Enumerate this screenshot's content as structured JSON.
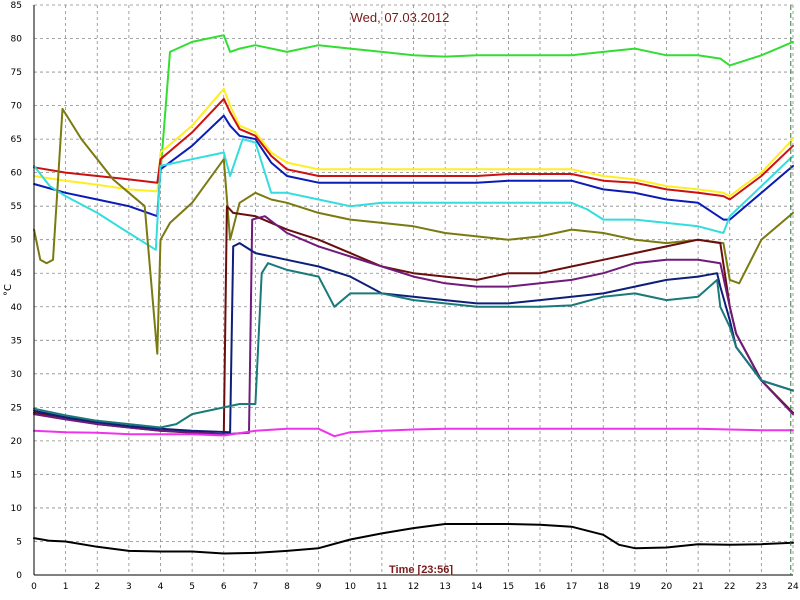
{
  "chart_data": {
    "type": "line",
    "title": "Wed, 07.03.2012",
    "xlabel": "Time [23:56]",
    "ylabel": "°C",
    "xlim": [
      0,
      24
    ],
    "ylim": [
      0,
      85
    ],
    "xticks": [
      0,
      1,
      2,
      3,
      4,
      5,
      6,
      7,
      8,
      9,
      10,
      11,
      12,
      13,
      14,
      15,
      16,
      17,
      18,
      19,
      20,
      21,
      22,
      23,
      24
    ],
    "yticks": [
      0,
      5,
      10,
      15,
      20,
      25,
      30,
      35,
      40,
      45,
      50,
      55,
      60,
      65,
      70,
      75,
      80,
      85
    ],
    "grid": true,
    "colors": {
      "axis_text": "#7a1a1a",
      "grid": "#8a8a8a",
      "current_time_marker": "#2e7d32"
    },
    "current_time": 23.93,
    "series": [
      {
        "color": "#33dd33",
        "x": [
          0,
          0.8,
          3.85,
          4.0,
          4.3,
          5,
          6,
          6.2,
          6.5,
          7,
          8,
          9,
          10,
          11,
          12,
          13,
          14,
          15,
          16,
          17,
          18,
          19,
          20,
          21,
          21.7,
          22,
          23,
          24
        ],
        "y": [
          null,
          null,
          null,
          60,
          78,
          79.5,
          80.5,
          78,
          78.5,
          79,
          78,
          79,
          78.5,
          78,
          77.5,
          77.3,
          77.5,
          77.5,
          77.5,
          77.5,
          78,
          78.5,
          77.5,
          77.5,
          77,
          76,
          77.5,
          79.5
        ]
      },
      {
        "color": "#ffee22",
        "x": [
          0,
          1,
          2,
          3,
          3.9,
          4.0,
          5,
          6,
          6.2,
          6.5,
          7,
          7.5,
          8,
          9,
          10,
          11,
          12,
          13,
          14,
          15,
          16,
          17,
          18,
          19,
          20,
          21,
          21.8,
          22,
          23,
          24
        ],
        "y": [
          59.5,
          58.8,
          58.2,
          57.5,
          57.2,
          63,
          67,
          72.5,
          70,
          67,
          66,
          63,
          61.5,
          60.5,
          60.5,
          60.5,
          60.5,
          60.5,
          60.5,
          60.5,
          60.5,
          60.5,
          59.5,
          59,
          58,
          57.5,
          57,
          56.5,
          60,
          65
        ]
      },
      {
        "color": "#cc1111",
        "x": [
          0,
          1,
          2,
          3,
          3.9,
          4.0,
          5,
          6,
          6.2,
          6.5,
          7,
          7.5,
          8,
          9,
          10,
          11,
          12,
          13,
          14,
          15,
          16,
          17,
          18,
          19,
          20,
          21,
          21.8,
          22,
          23,
          24
        ],
        "y": [
          60.8,
          60,
          59.5,
          59,
          58.5,
          62,
          66,
          71,
          69,
          66.5,
          65.5,
          62.5,
          60.5,
          59.5,
          59.5,
          59.5,
          59.5,
          59.5,
          59.5,
          59.8,
          59.8,
          59.8,
          58.8,
          58.5,
          57.5,
          57,
          56.5,
          56,
          59.5,
          64
        ]
      },
      {
        "color": "#0b1bb5",
        "x": [
          0,
          1,
          2,
          3,
          3.9,
          4.0,
          5,
          6,
          6.2,
          6.5,
          7,
          7.5,
          8,
          9,
          10,
          11,
          12,
          13,
          14,
          15,
          16,
          17,
          18,
          19,
          20,
          21,
          21.8,
          22,
          23,
          24
        ],
        "y": [
          58.3,
          57,
          56,
          55,
          53.5,
          60.5,
          64,
          68.5,
          67,
          65.5,
          65,
          61.5,
          59.5,
          58.5,
          58.5,
          58.5,
          58.5,
          58.5,
          58.5,
          58.8,
          58.8,
          58.8,
          57.5,
          57,
          56,
          55.5,
          53,
          53,
          57,
          61
        ]
      },
      {
        "color": "#33dddd",
        "x": [
          0,
          0.5,
          1,
          2,
          3,
          3.85,
          4.0,
          5,
          6,
          6.2,
          6.6,
          7,
          7.5,
          8,
          9,
          10,
          11,
          12,
          13,
          14,
          15,
          16,
          17,
          17.5,
          18,
          19,
          20,
          21,
          21.8,
          22,
          23,
          24
        ],
        "y": [
          61,
          58,
          56.5,
          54,
          51,
          48.5,
          61,
          62,
          63,
          59.5,
          65,
          64.5,
          57,
          57,
          56,
          55,
          55.5,
          55.5,
          55.5,
          55.5,
          55.5,
          55.5,
          55.5,
          54.5,
          53,
          53,
          52.5,
          52,
          51,
          53.5,
          58,
          62.5
        ]
      },
      {
        "color": "#7a7a10",
        "x": [
          0,
          0.2,
          0.4,
          0.6,
          0.9,
          1.5,
          2,
          2.5,
          3,
          3.5,
          3.9,
          4.0,
          4.3,
          5,
          6,
          6.2,
          6.5,
          7,
          7.5,
          8,
          9,
          10,
          11,
          12,
          13,
          14,
          15,
          16,
          17,
          18,
          19,
          20,
          21,
          21.8,
          22,
          22.3,
          23,
          24
        ],
        "y": [
          51.5,
          47,
          46.5,
          47,
          69.5,
          65,
          62,
          59,
          57,
          55,
          33,
          50,
          52.5,
          55.5,
          62,
          50,
          55.5,
          57,
          56,
          55.5,
          54,
          53,
          52.5,
          52,
          51,
          50.5,
          50,
          50.5,
          51.5,
          51,
          50,
          49.5,
          50,
          49.5,
          44,
          43.5,
          50,
          54
        ]
      },
      {
        "color": "#6a0d0d",
        "x": [
          0,
          1,
          2,
          3,
          4,
          5,
          6.0,
          6.1,
          6.3,
          7,
          8,
          9,
          10,
          11,
          12,
          13,
          14,
          15,
          16,
          17,
          18,
          19,
          20,
          21,
          21.7,
          22,
          22.2,
          23,
          24
        ],
        "y": [
          24.2,
          23.5,
          22.5,
          22,
          21.5,
          21.2,
          21,
          55,
          54,
          53.5,
          51.5,
          50,
          48,
          46,
          45,
          44.5,
          44,
          45,
          45,
          46,
          47,
          48,
          49,
          50,
          49.5,
          40,
          36,
          29,
          24.2
        ]
      },
      {
        "color": "#701a7a",
        "x": [
          0,
          1,
          2,
          3,
          4,
          5,
          6.0,
          6.8,
          6.9,
          7.3,
          8,
          9,
          10,
          11,
          12,
          13,
          14,
          15,
          16,
          17,
          18,
          19,
          20,
          21,
          21.7,
          22,
          22.2,
          23,
          24
        ],
        "y": [
          24,
          23.2,
          22.5,
          22,
          21.5,
          21.3,
          21,
          21.2,
          53,
          53.5,
          51,
          49,
          47.5,
          46,
          44.5,
          43.5,
          43,
          43,
          43.5,
          44,
          45,
          46.5,
          47,
          47,
          46.5,
          40,
          36,
          29,
          24
        ]
      },
      {
        "color": "#0d1f7a",
        "x": [
          0,
          1,
          2,
          3,
          4,
          5,
          6.2,
          6.3,
          6.5,
          7,
          8,
          9,
          10,
          11,
          12,
          13,
          14,
          15,
          16,
          17,
          18,
          19,
          20,
          21,
          21.6,
          21.7,
          22,
          22.2,
          23,
          24
        ],
        "y": [
          24.5,
          23.5,
          22.8,
          22.2,
          21.8,
          21.5,
          21.3,
          49,
          49.5,
          48,
          47,
          46,
          44.5,
          42,
          41.5,
          41,
          40.5,
          40.5,
          41,
          41.5,
          42,
          43,
          44,
          44.5,
          45,
          43,
          38,
          34,
          29,
          27.5
        ]
      },
      {
        "color": "#1a7a7a",
        "x": [
          0,
          1,
          2,
          3,
          4,
          4.5,
          5,
          6,
          6.5,
          7,
          7.2,
          7.4,
          8,
          9,
          9.5,
          10,
          11,
          12,
          13,
          14,
          15,
          16,
          17,
          18,
          19,
          20,
          21,
          21.6,
          21.7,
          22,
          22.2,
          23,
          24
        ],
        "y": [
          24.8,
          23.8,
          23,
          22.5,
          22,
          22.5,
          24,
          25,
          25.5,
          25.5,
          45,
          46.5,
          45.5,
          44.5,
          40,
          42,
          42,
          41,
          40.5,
          40,
          40,
          40,
          40.2,
          41.5,
          42,
          41,
          41.5,
          44,
          40,
          37,
          34,
          29,
          27.5
        ]
      },
      {
        "color": "#ee33ee",
        "x": [
          0,
          1,
          2,
          3,
          4,
          5,
          6,
          7,
          8,
          9,
          9.5,
          10,
          11,
          12,
          13,
          14,
          15,
          16,
          17,
          18,
          19,
          20,
          21,
          22,
          23,
          24
        ],
        "y": [
          21.5,
          21.3,
          21.2,
          21,
          21,
          21,
          20.8,
          21.5,
          21.8,
          21.8,
          20.7,
          21.3,
          21.5,
          21.7,
          21.8,
          21.8,
          21.8,
          21.8,
          21.8,
          21.8,
          21.8,
          21.8,
          21.8,
          21.7,
          21.6,
          21.6
        ]
      },
      {
        "color": "#000000",
        "x": [
          0,
          0.5,
          1,
          2,
          3,
          4,
          5,
          6,
          7,
          8,
          9,
          10,
          11,
          12,
          13,
          14,
          15,
          16,
          17,
          18,
          18.5,
          19,
          20,
          21,
          22,
          23,
          24
        ],
        "y": [
          5.5,
          5.1,
          5.0,
          4.2,
          3.6,
          3.5,
          3.5,
          3.2,
          3.3,
          3.6,
          4.0,
          5.3,
          6.2,
          7.0,
          7.6,
          7.6,
          7.6,
          7.5,
          7.2,
          6.0,
          4.5,
          4.0,
          4.1,
          4.6,
          4.5,
          4.6,
          4.8
        ]
      }
    ]
  }
}
